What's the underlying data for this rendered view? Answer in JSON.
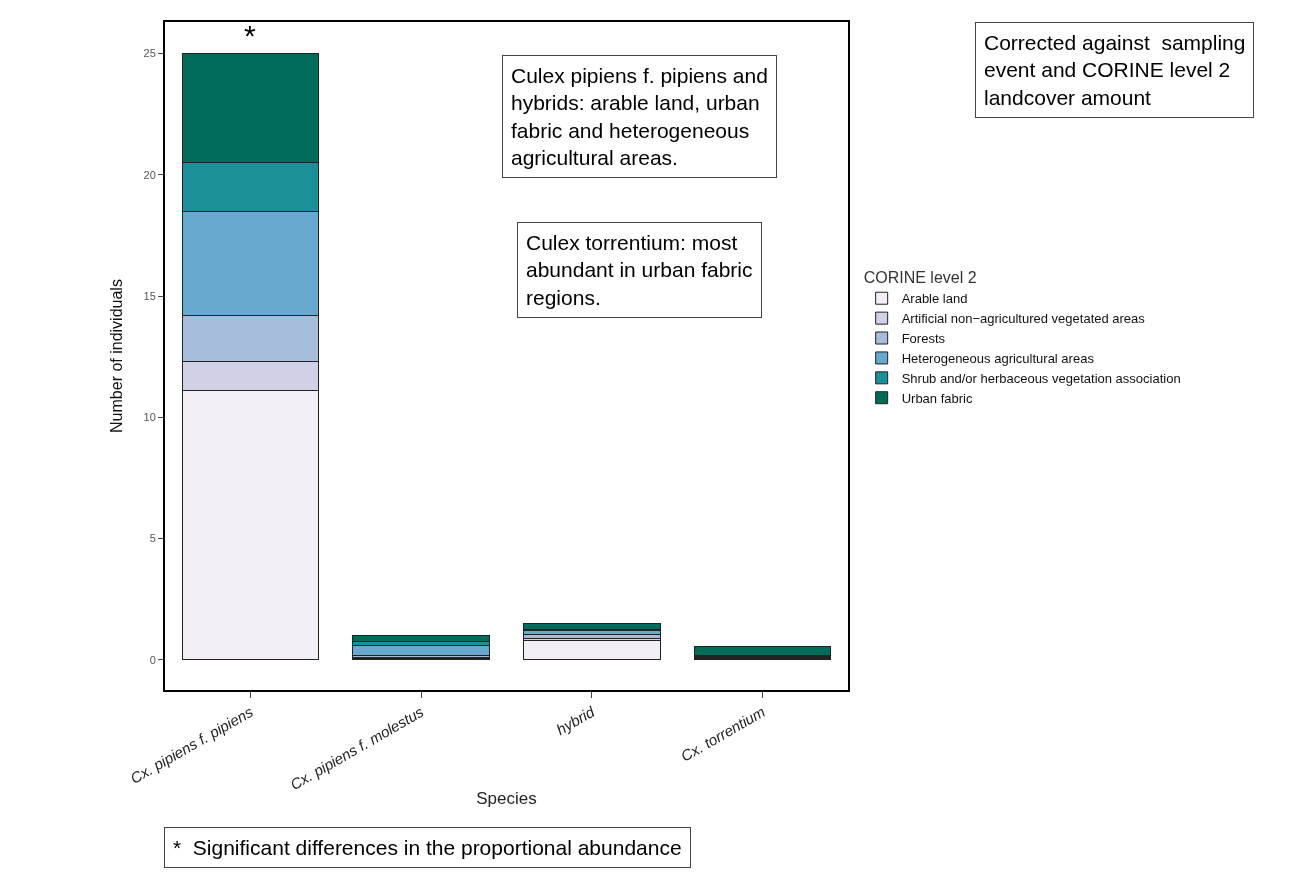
{
  "chart_data": {
    "type": "bar",
    "stacked": true,
    "xlabel": "Species",
    "ylabel": "Number of individuals",
    "legend_title": "CORINE level 2",
    "legend": "right",
    "categories": [
      "Cx. pipiens f. pipiens",
      "Cx. pipiens f. molestus",
      "hybrid",
      "Cx. torrentium"
    ],
    "series": [
      {
        "name": "Arable land",
        "color": "#f3eef6",
        "values": [
          11.1,
          0.05,
          0.8,
          0.05
        ]
      },
      {
        "name": "Artificial non−agricultured vegetated areas",
        "color": "#d0d1e6",
        "values": [
          1.2,
          0.05,
          0.1,
          0.05
        ]
      },
      {
        "name": "Forests",
        "color": "#a6bddb",
        "values": [
          1.9,
          0.1,
          0.15,
          0.05
        ]
      },
      {
        "name": "Heterogeneous agricultural areas",
        "color": "#67a9cf",
        "values": [
          4.3,
          0.4,
          0.15,
          0.05
        ]
      },
      {
        "name": "Shrub and/or herbaceous vegetation association",
        "color": "#1c9099",
        "values": [
          2.0,
          0.15,
          0.05,
          0
        ]
      },
      {
        "name": "Urban fabric",
        "color": "#016c59",
        "values": [
          4.5,
          0.25,
          0.25,
          0.35
        ]
      }
    ],
    "ylim": [
      -1.24,
      26.3
    ],
    "yticks": [
      0,
      5,
      10,
      15,
      20,
      25
    ],
    "annotations": [
      {
        "text": "*",
        "x": "Cx. pipiens f. pipiens",
        "y": 25
      },
      "Culex pipiens f. pipiens and hybrids: arable land, urban fabric and heterogeneous agricultural areas.",
      "Culex torrentium: most abundant in urban fabric regions.",
      "Corrected against  sampling event and CORINE level 2 landcover amount",
      "*  Significant differences in the proportional abundance"
    ]
  }
}
